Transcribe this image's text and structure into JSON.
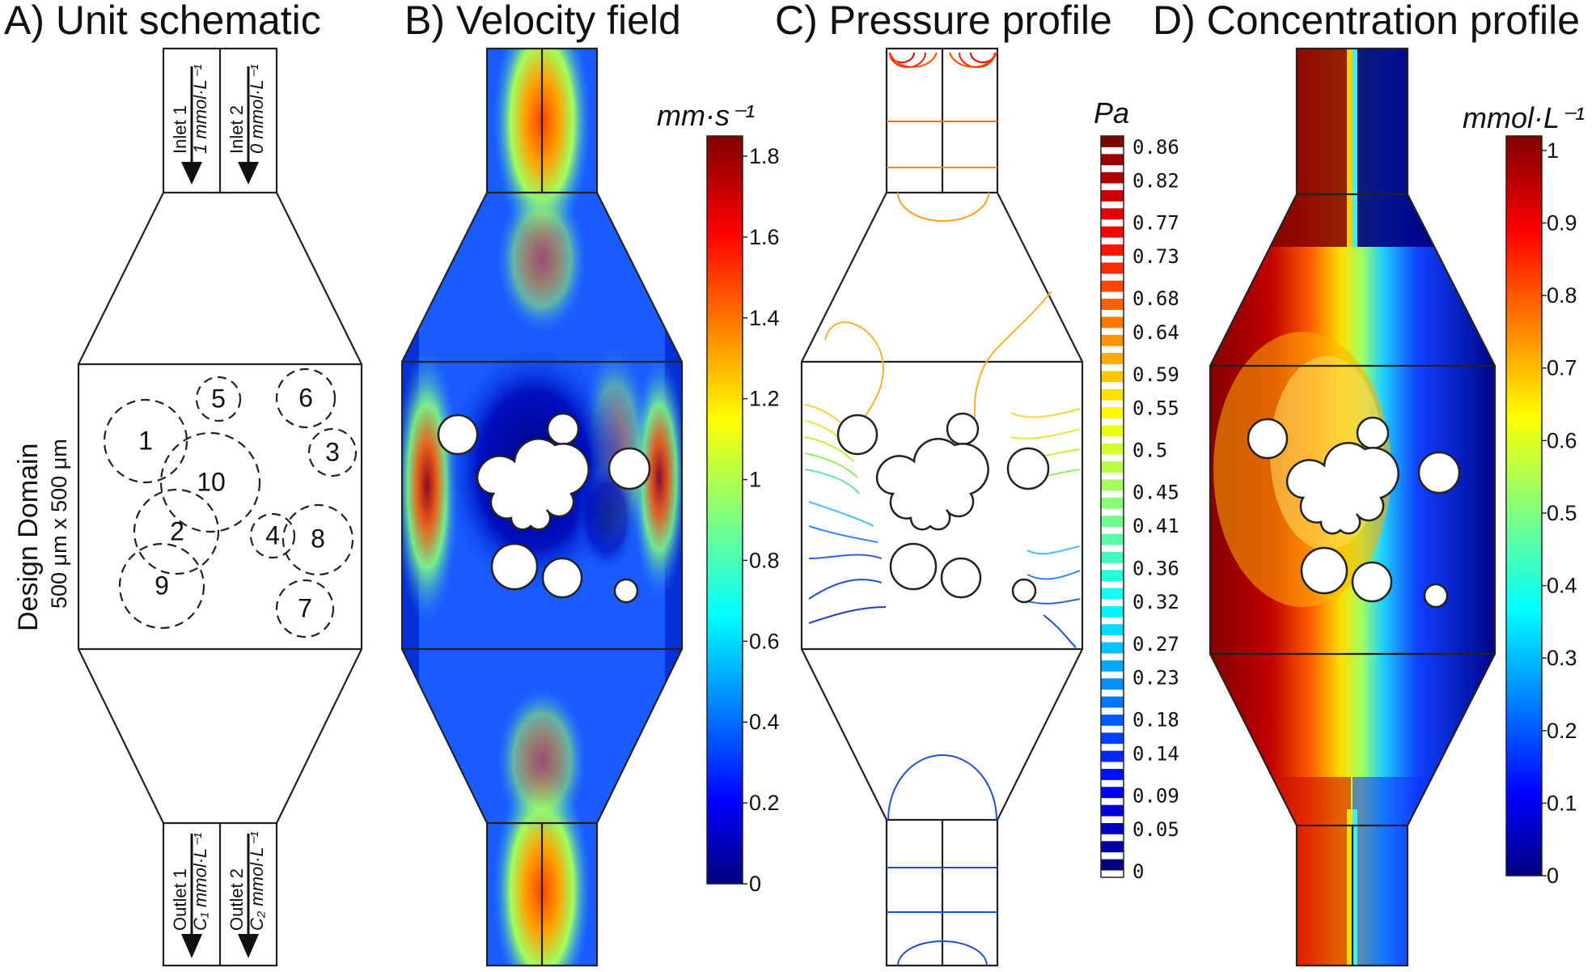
{
  "panels": {
    "a": {
      "title": "A) Unit schematic"
    },
    "b": {
      "title": "B) Velocity field"
    },
    "c": {
      "title": "C) Pressure profile"
    },
    "d": {
      "title": "D) Concentration profile"
    }
  },
  "schematic": {
    "inlet1": {
      "name": "Inlet 1",
      "conc": "1 mmol·L⁻¹"
    },
    "inlet2": {
      "name": "Inlet 2",
      "conc": "0 mmol·L⁻¹"
    },
    "outlet1": {
      "name": "Outlet 1",
      "conc": "C₁ mmol·L⁻¹"
    },
    "outlet2": {
      "name": "Outlet 2",
      "conc": "C₂ mmol·L⁻¹"
    },
    "design_domain": {
      "label": "Design Domain",
      "size": "500 μm x 500 μm"
    },
    "obstacle_numbers": [
      "1",
      "2",
      "3",
      "4",
      "5",
      "6",
      "7",
      "8",
      "9",
      "10"
    ]
  },
  "colorbars": {
    "velocity": {
      "unit": "mm·s⁻¹",
      "ticks": [
        "1.8",
        "1.6",
        "1.4",
        "1.2",
        "1",
        "0.8",
        "0.6",
        "0.4",
        "0.2",
        "0"
      ],
      "range": [
        0,
        1.85
      ]
    },
    "pressure": {
      "unit": "Pa",
      "ticks": [
        "0.86",
        "0.82",
        "0.77",
        "0.73",
        "0.68",
        "0.64",
        "0.59",
        "0.55",
        "0.5",
        "0.45",
        "0.41",
        "0.36",
        "0.32",
        "0.27",
        "0.23",
        "0.18",
        "0.14",
        "0.09",
        "0.05",
        "0"
      ],
      "range": [
        0,
        0.88
      ]
    },
    "concentration": {
      "unit": "mmol·L⁻¹",
      "ticks": [
        "1",
        "0.9",
        "0.8",
        "0.7",
        "0.6",
        "0.5",
        "0.4",
        "0.3",
        "0.2",
        "0.1",
        "0"
      ],
      "range": [
        0,
        1.02
      ]
    }
  },
  "colors": {
    "jet_dark_blue": "#00007f",
    "jet_blue": "#0000ff",
    "jet_cyan": "#00ffff",
    "jet_yellow": "#ffff00",
    "jet_red": "#ff0000",
    "jet_dark_red": "#7f0000",
    "outline": "#222222",
    "background": "#ffffff"
  }
}
